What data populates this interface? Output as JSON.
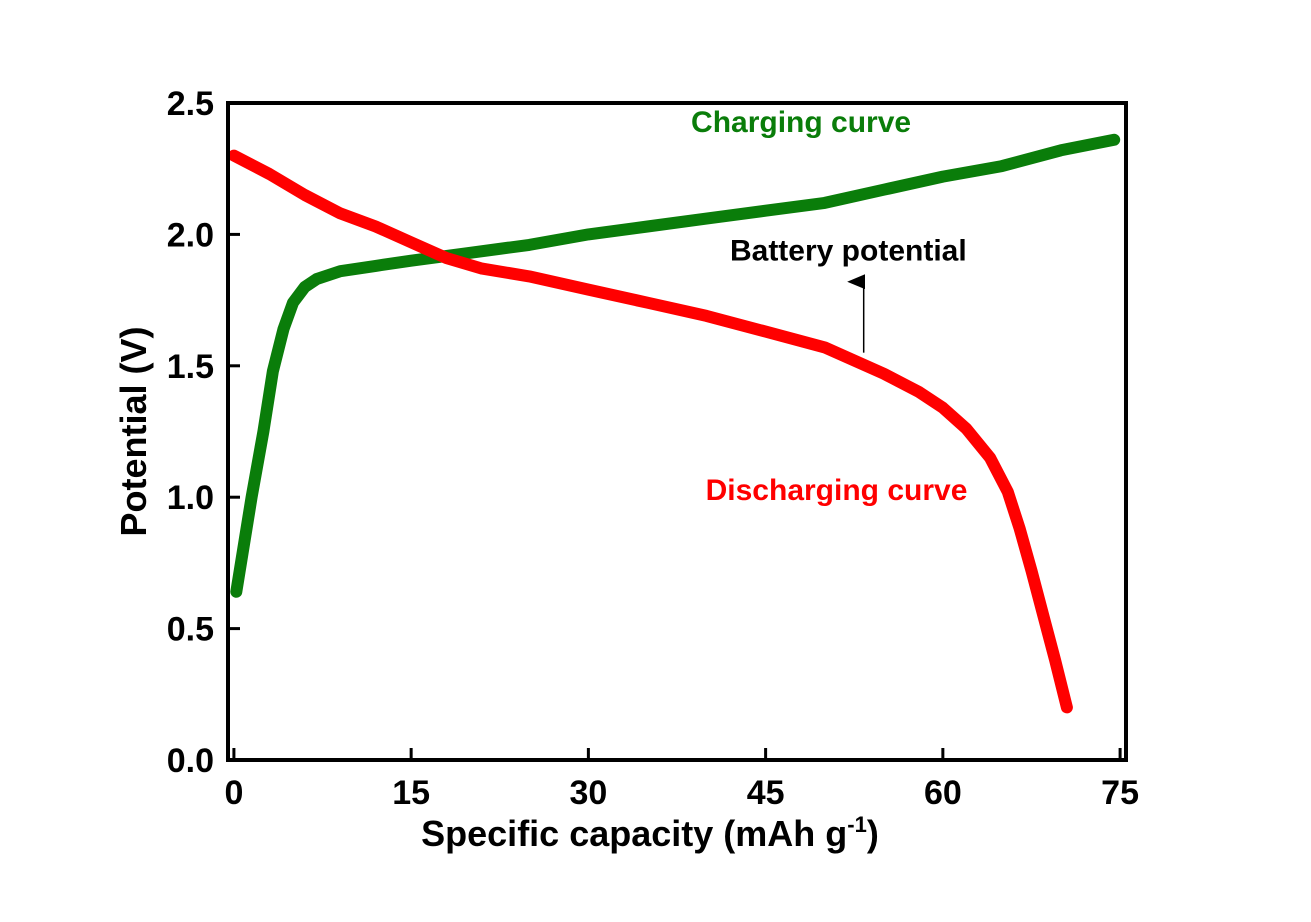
{
  "colors": {
    "charging": "#0a7d0a",
    "discharging": "#ff0000",
    "axis": "#000000",
    "annotation": "#000000"
  },
  "chart_data": {
    "type": "line",
    "xlabel": {
      "main": "Specific capacity (mAh g",
      "sup": "-1",
      "close": ")"
    },
    "ylabel": "Potential (V)",
    "xlim": [
      -0.5,
      75.5
    ],
    "ylim": [
      0.0,
      2.5
    ],
    "xticks": [
      0,
      15,
      30,
      45,
      60,
      75
    ],
    "yticks": [
      0.0,
      0.5,
      1.0,
      1.5,
      2.0,
      2.5
    ],
    "xtick_labels": [
      "0",
      "15",
      "30",
      "45",
      "60",
      "75"
    ],
    "ytick_labels": [
      "0.0",
      "0.5",
      "1.0",
      "1.5",
      "2.0",
      "2.5"
    ],
    "grid": false,
    "series": [
      {
        "name": "Charging curve",
        "color": "#0a7d0a",
        "points": [
          [
            0.2,
            0.64
          ],
          [
            1.5,
            1.0
          ],
          [
            2.5,
            1.25
          ],
          [
            3.3,
            1.48
          ],
          [
            4.2,
            1.64
          ],
          [
            5.0,
            1.74
          ],
          [
            6.0,
            1.8
          ],
          [
            7.0,
            1.83
          ],
          [
            9.0,
            1.86
          ],
          [
            12.0,
            1.88
          ],
          [
            15.0,
            1.9
          ],
          [
            20.0,
            1.93
          ],
          [
            25.0,
            1.96
          ],
          [
            30.0,
            2.0
          ],
          [
            35.0,
            2.03
          ],
          [
            40.0,
            2.06
          ],
          [
            45.0,
            2.09
          ],
          [
            50.0,
            2.12
          ],
          [
            55.0,
            2.17
          ],
          [
            60.0,
            2.22
          ],
          [
            65.0,
            2.26
          ],
          [
            70.0,
            2.32
          ],
          [
            74.5,
            2.36
          ]
        ]
      },
      {
        "name": "Discharging curve",
        "color": "#ff0000",
        "points": [
          [
            0.0,
            2.3
          ],
          [
            3.0,
            2.23
          ],
          [
            6.0,
            2.15
          ],
          [
            9.0,
            2.08
          ],
          [
            12.0,
            2.03
          ],
          [
            15.0,
            1.97
          ],
          [
            18.0,
            1.91
          ],
          [
            21.0,
            1.87
          ],
          [
            25.0,
            1.84
          ],
          [
            30.0,
            1.79
          ],
          [
            35.0,
            1.74
          ],
          [
            40.0,
            1.69
          ],
          [
            45.0,
            1.63
          ],
          [
            50.0,
            1.57
          ],
          [
            55.0,
            1.47
          ],
          [
            58.0,
            1.4
          ],
          [
            60.0,
            1.34
          ],
          [
            62.0,
            1.26
          ],
          [
            64.0,
            1.15
          ],
          [
            65.5,
            1.02
          ],
          [
            66.5,
            0.88
          ],
          [
            67.5,
            0.72
          ],
          [
            68.5,
            0.55
          ],
          [
            69.5,
            0.38
          ],
          [
            70.5,
            0.2
          ]
        ]
      }
    ],
    "annotations": [
      {
        "text": "Charging curve",
        "color": "#0a7d0a",
        "x": 48,
        "y": 2.39
      },
      {
        "text": "Battery potential",
        "color": "#000000",
        "x": 52,
        "y": 1.9
      },
      {
        "text": "Discharging curve",
        "color": "#ff0000",
        "x": 51,
        "y": 0.99
      }
    ],
    "arrow": {
      "from": [
        53.3,
        1.55
      ],
      "to": [
        53.3,
        1.82
      ]
    }
  }
}
